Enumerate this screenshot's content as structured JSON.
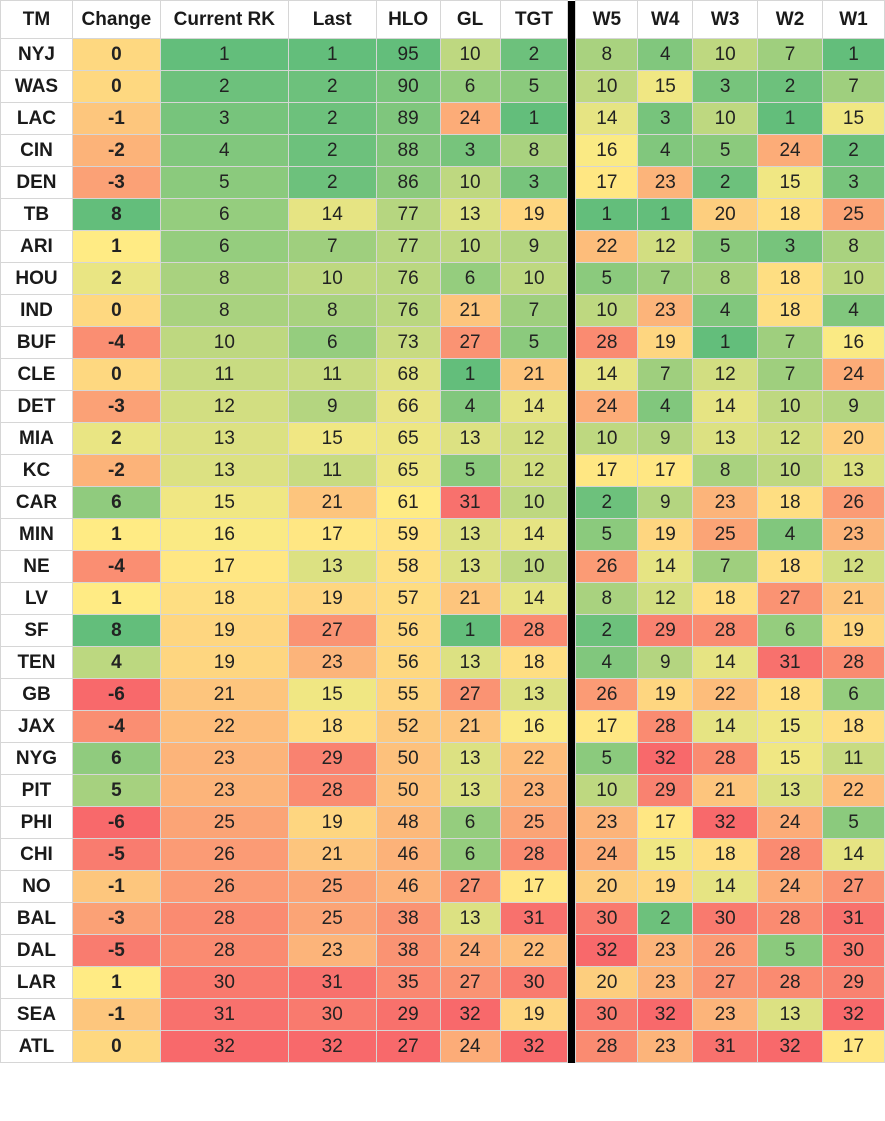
{
  "colors": {
    "low": "#63be7b",
    "mid": "#ffeb84",
    "high": "#f8696b",
    "separator": "#000000"
  },
  "chart_data": {
    "type": "table",
    "columns": [
      "TM",
      "Change",
      "Current RK",
      "Last",
      "HLO",
      "GL",
      "TGT",
      "W5",
      "W4",
      "W3",
      "W2",
      "W1"
    ],
    "rows": [
      [
        "NYJ",
        0,
        1,
        1,
        95,
        10,
        2,
        8,
        4,
        10,
        7,
        1
      ],
      [
        "WAS",
        0,
        2,
        2,
        90,
        6,
        5,
        10,
        15,
        3,
        2,
        7
      ],
      [
        "LAC",
        -1,
        3,
        2,
        89,
        24,
        1,
        14,
        3,
        10,
        1,
        15
      ],
      [
        "CIN",
        -2,
        4,
        2,
        88,
        3,
        8,
        16,
        4,
        5,
        24,
        2
      ],
      [
        "DEN",
        -3,
        5,
        2,
        86,
        10,
        3,
        17,
        23,
        2,
        15,
        3
      ],
      [
        "TB",
        8,
        6,
        14,
        77,
        13,
        19,
        1,
        1,
        20,
        18,
        25
      ],
      [
        "ARI",
        1,
        6,
        7,
        77,
        10,
        9,
        22,
        12,
        5,
        3,
        8
      ],
      [
        "HOU",
        2,
        8,
        10,
        76,
        6,
        10,
        5,
        7,
        8,
        18,
        10
      ],
      [
        "IND",
        0,
        8,
        8,
        76,
        21,
        7,
        10,
        23,
        4,
        18,
        4
      ],
      [
        "BUF",
        -4,
        10,
        6,
        73,
        27,
        5,
        28,
        19,
        1,
        7,
        16
      ],
      [
        "CLE",
        0,
        11,
        11,
        68,
        1,
        21,
        14,
        7,
        12,
        7,
        24
      ],
      [
        "DET",
        -3,
        12,
        9,
        66,
        4,
        14,
        24,
        4,
        14,
        10,
        9
      ],
      [
        "MIA",
        2,
        13,
        15,
        65,
        13,
        12,
        10,
        9,
        13,
        12,
        20
      ],
      [
        "KC",
        -2,
        13,
        11,
        65,
        5,
        12,
        17,
        17,
        8,
        10,
        13
      ],
      [
        "CAR",
        6,
        15,
        21,
        61,
        31,
        10,
        2,
        9,
        23,
        18,
        26
      ],
      [
        "MIN",
        1,
        16,
        17,
        59,
        13,
        14,
        5,
        19,
        25,
        4,
        23
      ],
      [
        "NE",
        -4,
        17,
        13,
        58,
        13,
        10,
        26,
        14,
        7,
        18,
        12
      ],
      [
        "LV",
        1,
        18,
        19,
        57,
        21,
        14,
        8,
        12,
        18,
        27,
        21
      ],
      [
        "SF",
        8,
        19,
        27,
        56,
        1,
        28,
        2,
        29,
        28,
        6,
        19
      ],
      [
        "TEN",
        4,
        19,
        23,
        56,
        13,
        18,
        4,
        9,
        14,
        31,
        28
      ],
      [
        "GB",
        -6,
        21,
        15,
        55,
        27,
        13,
        26,
        19,
        22,
        18,
        6
      ],
      [
        "JAX",
        -4,
        22,
        18,
        52,
        21,
        16,
        17,
        28,
        14,
        15,
        18
      ],
      [
        "NYG",
        6,
        23,
        29,
        50,
        13,
        22,
        5,
        32,
        28,
        15,
        11
      ],
      [
        "PIT",
        5,
        23,
        28,
        50,
        13,
        23,
        10,
        29,
        21,
        13,
        22
      ],
      [
        "PHI",
        -6,
        25,
        19,
        48,
        6,
        25,
        23,
        17,
        32,
        24,
        5
      ],
      [
        "CHI",
        -5,
        26,
        21,
        46,
        6,
        28,
        24,
        15,
        18,
        28,
        14
      ],
      [
        "NO",
        -1,
        26,
        25,
        46,
        27,
        17,
        20,
        19,
        14,
        24,
        27
      ],
      [
        "BAL",
        -3,
        28,
        25,
        38,
        13,
        31,
        30,
        2,
        30,
        28,
        31
      ],
      [
        "DAL",
        -5,
        28,
        23,
        38,
        24,
        22,
        32,
        23,
        26,
        5,
        30
      ],
      [
        "LAR",
        1,
        30,
        31,
        35,
        27,
        30,
        20,
        23,
        27,
        28,
        29
      ],
      [
        "SEA",
        -1,
        31,
        30,
        29,
        32,
        19,
        30,
        32,
        23,
        13,
        32
      ],
      [
        "ATL",
        0,
        32,
        32,
        27,
        24,
        32,
        28,
        23,
        31,
        32,
        17
      ]
    ],
    "color_scale": {
      "Change": {
        "min": -6,
        "max": 8,
        "good": "high"
      },
      "Current RK": {
        "min": 1,
        "max": 32,
        "good": "low"
      },
      "Last": {
        "min": 1,
        "max": 32,
        "good": "low"
      },
      "HLO": {
        "min": 27,
        "max": 95,
        "good": "high"
      },
      "GL": {
        "min": 1,
        "max": 32,
        "good": "low"
      },
      "TGT": {
        "min": 1,
        "max": 32,
        "good": "low"
      },
      "W5": {
        "min": 1,
        "max": 32,
        "good": "low"
      },
      "W4": {
        "min": 1,
        "max": 32,
        "good": "low"
      },
      "W3": {
        "min": 1,
        "max": 32,
        "good": "low"
      },
      "W2": {
        "min": 1,
        "max": 32,
        "good": "low"
      },
      "W1": {
        "min": 1,
        "max": 32,
        "good": "low"
      }
    }
  }
}
